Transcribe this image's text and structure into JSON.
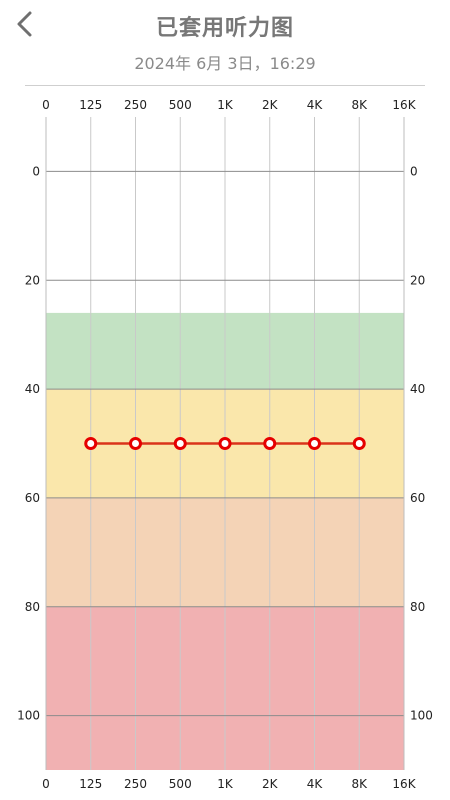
{
  "header": {
    "title": "已套用听力图",
    "datetime": "2024年 6月 3日，16:29",
    "back_icon": "chevron-left-icon"
  },
  "chart_data": {
    "type": "line",
    "title": "",
    "xlabel": "",
    "ylabel": "",
    "x_tick_labels": [
      "0",
      "125",
      "250",
      "500",
      "1K",
      "2K",
      "4K",
      "8K",
      "16K"
    ],
    "y_ticks": [
      0,
      20,
      40,
      60,
      80,
      100
    ],
    "ylim": [
      -10,
      110
    ],
    "y_inverted": true,
    "grid": true,
    "bands": [
      {
        "from": 26,
        "to": 40,
        "color": "#c3e2c3"
      },
      {
        "from": 40,
        "to": 60,
        "color": "#fae7ab"
      },
      {
        "from": 60,
        "to": 80,
        "color": "#f4d3b6"
      },
      {
        "from": 80,
        "to": 110,
        "color": "#f1b1b2"
      }
    ],
    "series": [
      {
        "x": [
          "125",
          "250",
          "500",
          "1K",
          "2K",
          "4K",
          "8K"
        ],
        "values": [
          50,
          50,
          50,
          50,
          50,
          50,
          50
        ],
        "color": "#e60000",
        "line_color": "#d9331a"
      }
    ]
  }
}
